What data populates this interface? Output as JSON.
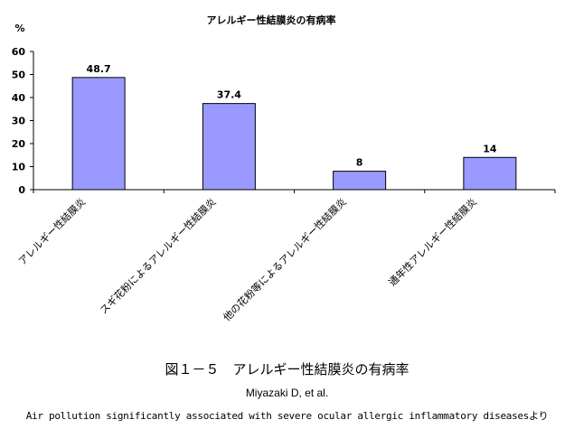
{
  "chart_data": {
    "type": "bar",
    "title": "アレルギー性結膜炎の有病率",
    "ylabel": "%",
    "xlabel": "",
    "ylim": [
      0,
      60
    ],
    "yticks": [
      0,
      10,
      20,
      30,
      40,
      50,
      60
    ],
    "grid": false,
    "categories": [
      "アレルギー性結膜炎",
      "スギ花粉によるアレルギー性結膜炎",
      "他の花粉等によるアレルギー性結膜炎",
      "通年性アレルギー性結膜炎"
    ],
    "values": [
      48.7,
      37.4,
      8,
      14
    ],
    "data_labels": [
      "48.7",
      "37.4",
      "8",
      "14"
    ],
    "colors": {
      "bar_fill": "#9999ff",
      "bar_stroke": "#000000",
      "axis": "#000000"
    }
  },
  "caption": {
    "figure_title": "図１－５　アレルギー性結膜炎の有病率",
    "author": "Miyazaki D, et al.",
    "source": "Air pollution significantly associated with severe ocular allergic inflammatory diseasesより"
  }
}
